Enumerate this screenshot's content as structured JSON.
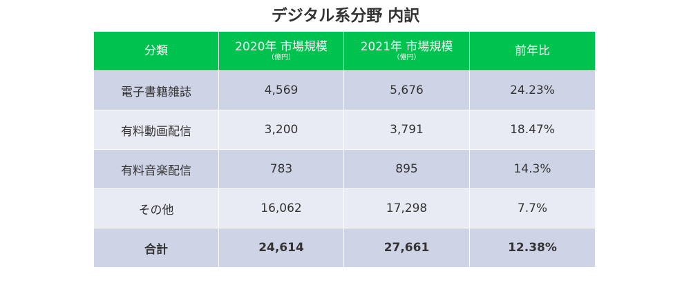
{
  "title": "デジタル系分野 内訳",
  "chart_data": {
    "type": "table",
    "title": "デジタル系分野 内訳",
    "columns": [
      {
        "label": "分類",
        "sublabel": ""
      },
      {
        "label": "2020年 市場規模",
        "sublabel": "（億円）"
      },
      {
        "label": "2021年 市場規模",
        "sublabel": "（億円）"
      },
      {
        "label": "前年比",
        "sublabel": ""
      }
    ],
    "rows": [
      [
        "電子書籍雑誌",
        "4,569",
        "5,676",
        "24.23%"
      ],
      [
        "有料動画配信",
        "3,200",
        "3,791",
        "18.47%"
      ],
      [
        "有料音楽配信",
        "783",
        "895",
        "14.3%"
      ],
      [
        "その他",
        "16,062",
        "17,298",
        "7.7%"
      ]
    ],
    "total": [
      "合計",
      "24,614",
      "27,661",
      "12.38%"
    ],
    "colors": {
      "header": "#00c24e",
      "row_dark": "#cfd3e6",
      "row_light": "#e8eaf4"
    }
  }
}
